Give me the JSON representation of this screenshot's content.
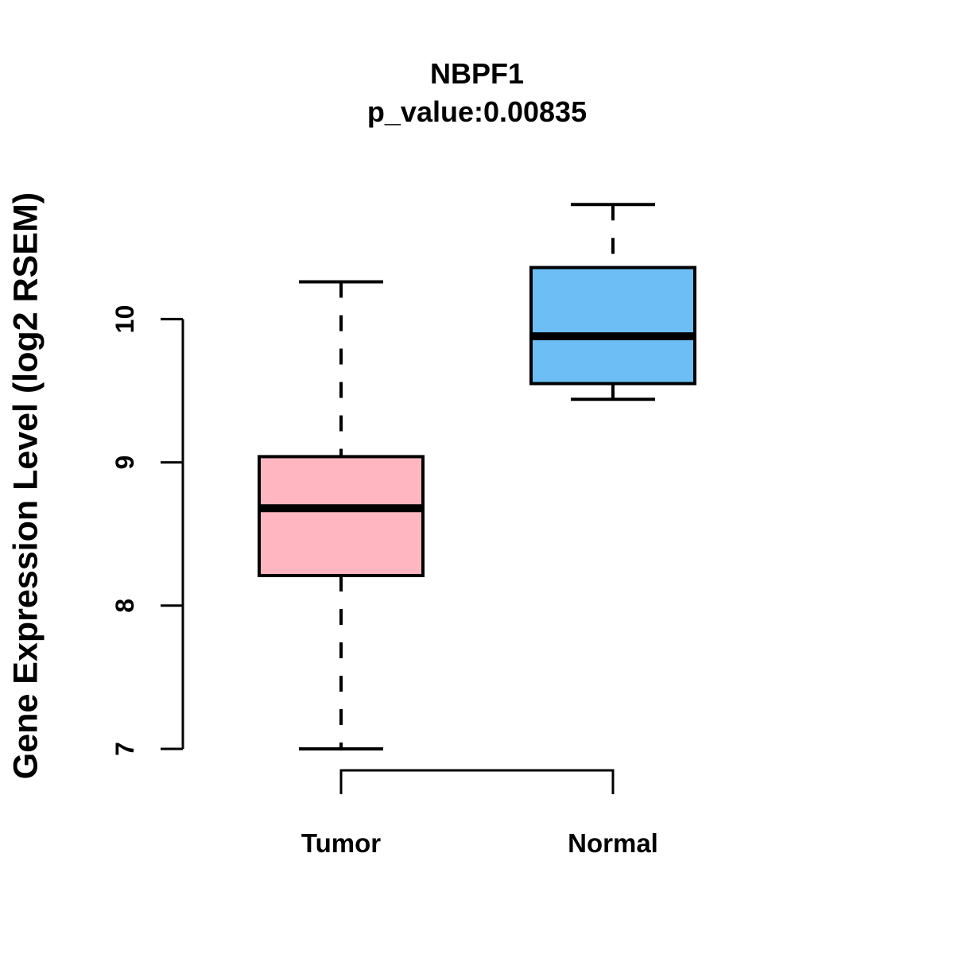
{
  "figure": {
    "title": "NBPF1",
    "subtitle": "p_value:0.00835",
    "y_axis_label": "Gene Expression Level (log2 RSEM)"
  },
  "chart_data": {
    "type": "boxplot",
    "title": "NBPF1",
    "subtitle": "p_value:0.00835",
    "ylabel": "Gene Expression Level (log2 RSEM)",
    "xlabel": "",
    "ylim": [
      7,
      10.9
    ],
    "yticks": [
      7,
      8,
      9,
      10
    ],
    "grid": false,
    "legend": "none",
    "categories": [
      "Tumor",
      "Normal"
    ],
    "series": [
      {
        "name": "Tumor",
        "color": "#FFB6C1",
        "whisker_low": 7.0,
        "q1": 8.21,
        "median": 8.68,
        "q3": 9.04,
        "whisker_high": 10.26
      },
      {
        "name": "Normal",
        "color": "#6CBEF5",
        "whisker_low": 9.44,
        "q1": 9.55,
        "median": 9.88,
        "q3": 10.36,
        "whisker_high": 10.8
      }
    ],
    "line_color": "#000000"
  }
}
